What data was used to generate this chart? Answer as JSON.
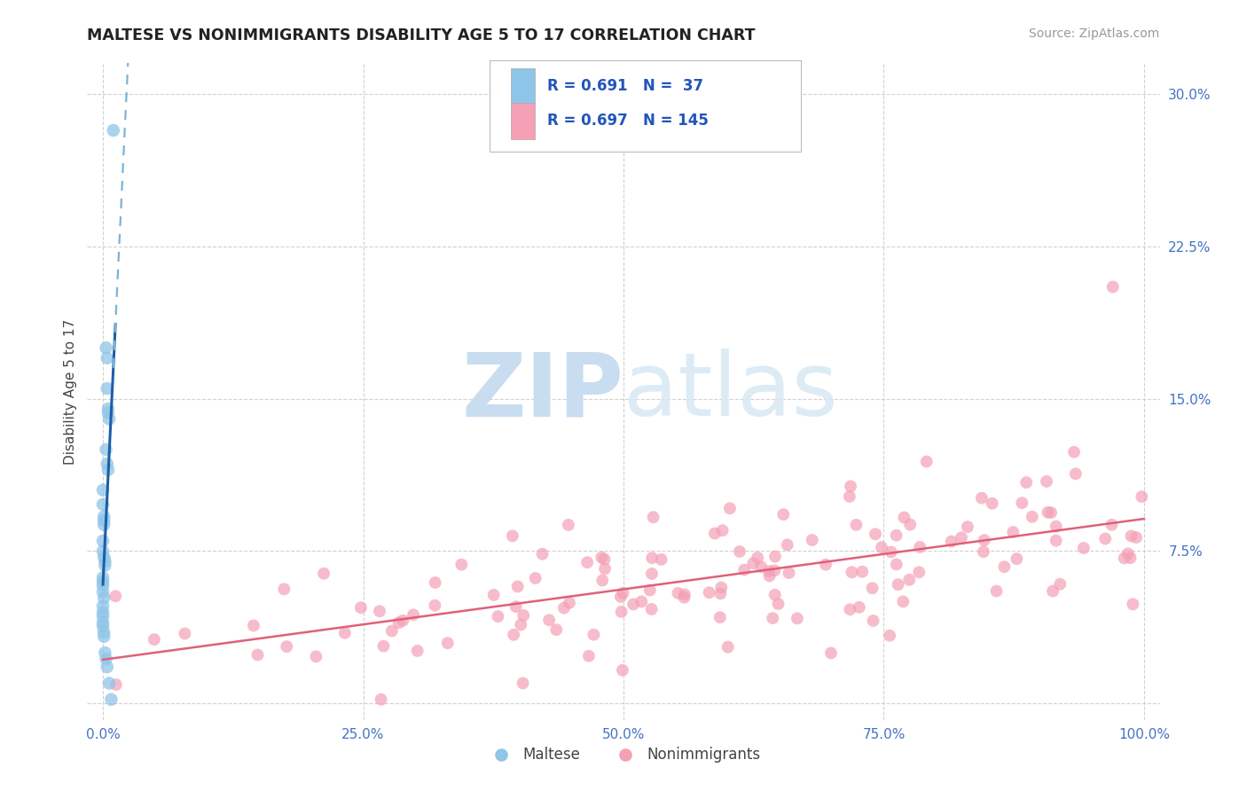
{
  "title": "MALTESE VS NONIMMIGRANTS DISABILITY AGE 5 TO 17 CORRELATION CHART",
  "source": "Source: ZipAtlas.com",
  "ylabel": "Disability Age 5 to 17",
  "xlim": [
    -0.015,
    1.015
  ],
  "ylim": [
    -0.008,
    0.315
  ],
  "xtick_vals": [
    0.0,
    0.25,
    0.5,
    0.75,
    1.0
  ],
  "xtick_labels": [
    "0.0%",
    "25.0%",
    "50.0%",
    "75.0%",
    "100.0%"
  ],
  "ytick_vals": [
    0.0,
    0.075,
    0.15,
    0.225,
    0.3
  ],
  "ytick_labels": [
    "",
    "7.5%",
    "15.0%",
    "22.5%",
    "30.0%"
  ],
  "background_color": "#ffffff",
  "grid_color": "#cccccc",
  "legend_R1": "0.691",
  "legend_N1": "37",
  "legend_R2": "0.697",
  "legend_N2": "145",
  "blue_color": "#8fc5e8",
  "pink_color": "#f4a0b5",
  "line_blue_solid": "#1a5fa8",
  "line_blue_dash": "#7ab3d9",
  "line_pink": "#e0607a",
  "tick_color": "#4472c4",
  "title_color": "#222222",
  "ylabel_color": "#444444"
}
